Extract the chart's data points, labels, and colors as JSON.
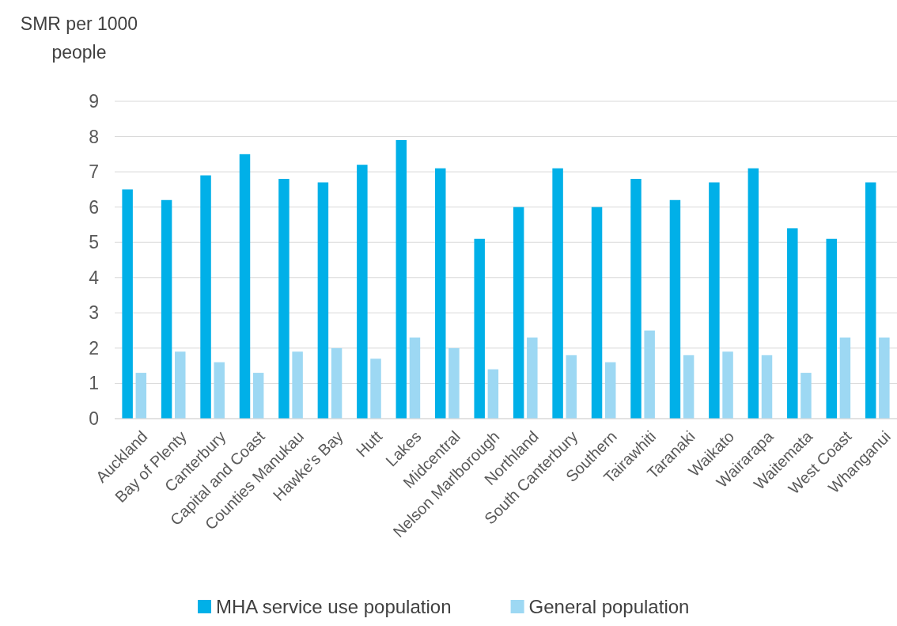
{
  "chart_data": {
    "type": "bar",
    "ylabel": "SMR per 1000 people",
    "categories": [
      "Auckland",
      "Bay of Plenty",
      "Canterbury",
      "Capital and Coast",
      "Counties Manukau",
      "Hawke's Bay",
      "Hutt",
      "Lakes",
      "Midcentral",
      "Nelson Marlborough",
      "Northland",
      "South Canterbury",
      "Southern",
      "Tairawhiti",
      "Taranaki",
      "Waikato",
      "Wairarapa",
      "Waitemata",
      "West Coast",
      "Whanganui"
    ],
    "series": [
      {
        "name": "MHA service use population",
        "color": "#00b0e8",
        "values": [
          6.5,
          6.2,
          6.9,
          7.5,
          6.8,
          6.7,
          7.2,
          7.9,
          7.1,
          5.1,
          6.0,
          7.1,
          6.0,
          6.8,
          6.2,
          6.7,
          7.1,
          5.4,
          5.1,
          6.7
        ]
      },
      {
        "name": "General population",
        "color": "#9dd8f3",
        "values": [
          1.3,
          1.9,
          1.6,
          1.3,
          1.9,
          2.0,
          1.7,
          2.3,
          2.0,
          1.4,
          2.3,
          1.8,
          1.6,
          2.5,
          1.8,
          1.9,
          1.8,
          1.3,
          2.3,
          2.3
        ]
      }
    ],
    "ylim": [
      0,
      9
    ],
    "yticks": [
      0,
      1,
      2,
      3,
      4,
      5,
      6,
      7,
      8,
      9
    ],
    "grid": "y",
    "legend": "bottom"
  }
}
